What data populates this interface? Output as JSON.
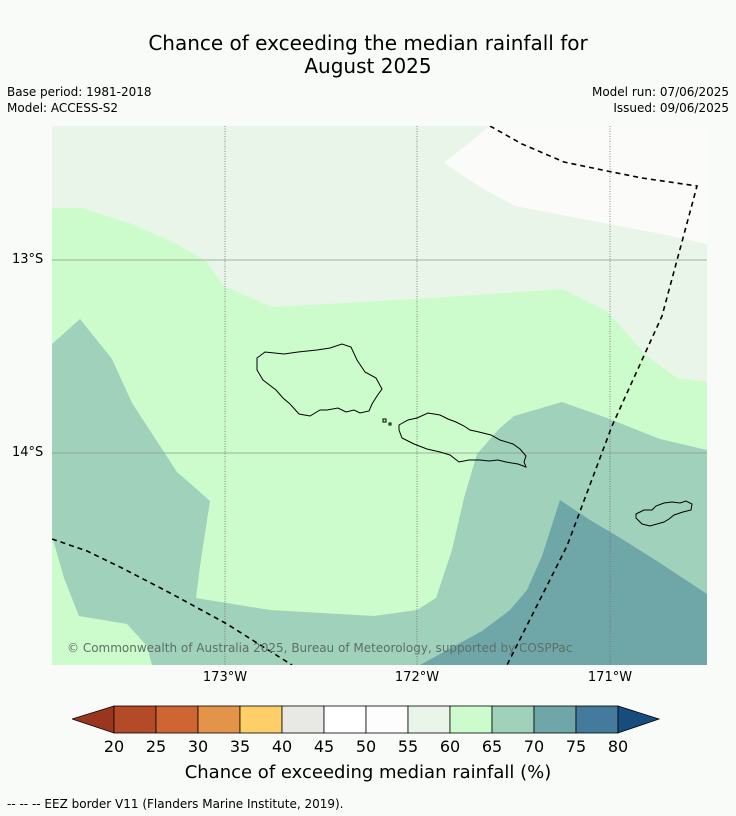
{
  "title": {
    "line1": "Chance of exceeding the median rainfall for",
    "line2": "August 2025"
  },
  "meta": {
    "base_period": "Base period: 1981-2018",
    "model": "Model: ACCESS-S2",
    "model_run": "Model run: 07/06/2025",
    "issued": "Issued: 09/06/2025"
  },
  "map": {
    "lat_labels": [
      "13°S",
      "14°S"
    ],
    "lon_labels": [
      "173°W",
      "172°W",
      "171°W"
    ],
    "copyright": "© Commonwealth of Australia 2025, Bureau of Meteorology, supported by COSPPac",
    "region_colors": {
      "c45_55": "#fbfcfa",
      "c55_60": "#eaf5ea",
      "c60_65": "#ccfccb",
      "c65_70": "#9fd1bb",
      "c70_75": "#6fa7a8"
    }
  },
  "colorbar": {
    "ticks": [
      "20",
      "25",
      "30",
      "35",
      "40",
      "45",
      "50",
      "55",
      "60",
      "65",
      "70",
      "75",
      "80"
    ],
    "colors": [
      "#9a3620",
      "#b34a28",
      "#cf6532",
      "#e39448",
      "#fecf68",
      "#e8e8e4",
      "#ffffff",
      "#fcfdfc",
      "#eaf5ea",
      "#ccfccb",
      "#9fd1bb",
      "#6fa7a8",
      "#447b9c",
      "#174c7e"
    ],
    "label": "Chance of exceeding median rainfall (%)"
  },
  "footer": {
    "legend_text": "--  --  -- EEZ border V11 (Flanders Marine Institute, 2019)."
  }
}
